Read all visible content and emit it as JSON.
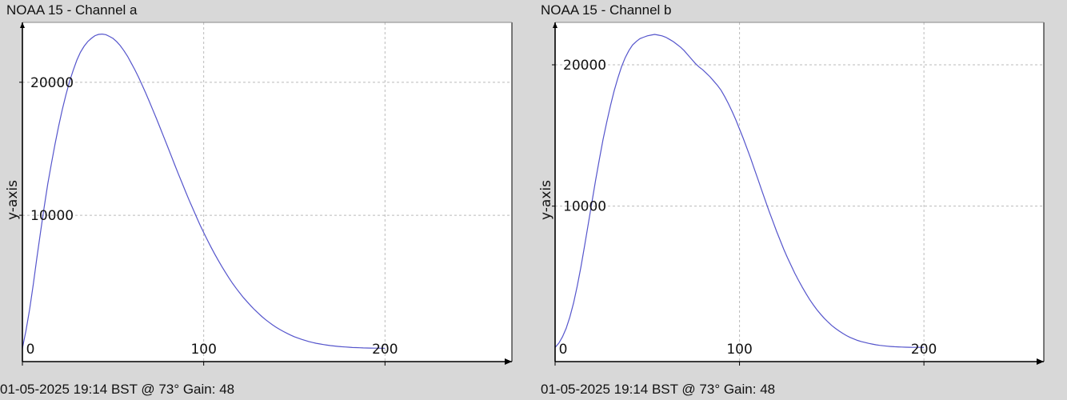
{
  "colors": {
    "background": "#d8d8d8",
    "plot_bg": "#ffffff",
    "line": "#5555cc",
    "grid": "#bbbbbb",
    "axis": "#000000"
  },
  "chart_data": [
    {
      "type": "line",
      "title": "NOAA 15 - Channel a",
      "ylabel": "y-axis",
      "xlabel": "",
      "footer": "01-05-2025 19:14 BST @ 73° Gain: 48",
      "xlim": [
        0,
        270
      ],
      "ylim": [
        -1000,
        24500
      ],
      "xticks": [
        0,
        100,
        200
      ],
      "yticks": [
        10000,
        20000
      ],
      "grid": true,
      "series": [
        {
          "x": [
            0,
            2,
            4,
            6,
            8,
            10,
            12,
            14,
            16,
            18,
            20,
            22,
            24,
            26,
            28,
            30,
            32,
            34,
            36,
            38,
            40,
            42,
            44,
            46,
            48,
            50,
            52,
            54,
            56,
            58,
            60,
            62,
            64,
            66,
            68,
            70,
            72,
            74,
            76,
            78,
            80,
            82,
            84,
            86,
            88,
            90,
            92,
            94,
            96,
            98,
            100,
            102,
            104,
            106,
            108,
            110,
            112,
            114,
            116,
            118,
            120,
            122,
            124,
            126,
            128,
            130,
            132,
            134,
            136,
            138,
            140,
            142,
            144,
            146,
            148,
            150,
            152,
            154,
            156,
            158,
            160,
            162,
            164,
            166,
            168,
            170,
            172,
            174,
            176,
            178,
            180,
            182,
            184,
            186,
            188,
            190,
            192,
            194,
            196,
            198,
            200
          ],
          "y": [
            0,
            1340,
            2950,
            4800,
            6800,
            8750,
            10600,
            12350,
            13900,
            15350,
            16700,
            17950,
            19050,
            20050,
            20900,
            21650,
            22250,
            22700,
            23050,
            23300,
            23500,
            23600,
            23620,
            23580,
            23450,
            23300,
            23050,
            22750,
            22380,
            21950,
            21450,
            20950,
            20400,
            19800,
            19200,
            18550,
            17900,
            17250,
            16560,
            15880,
            15200,
            14500,
            13800,
            13120,
            12450,
            11780,
            11130,
            10500,
            9880,
            9270,
            8700,
            8150,
            7620,
            7100,
            6620,
            6150,
            5700,
            5270,
            4870,
            4490,
            4140,
            3800,
            3490,
            3190,
            2910,
            2650,
            2400,
            2170,
            1960,
            1760,
            1580,
            1410,
            1260,
            1120,
            990,
            870,
            770,
            670,
            590,
            510,
            440,
            380,
            330,
            280,
            240,
            200,
            170,
            140,
            120,
            100,
            80,
            60,
            50,
            40,
            30,
            20,
            15,
            10,
            8,
            5,
            3
          ]
        }
      ]
    },
    {
      "type": "line",
      "title": "NOAA 15 - Channel b",
      "ylabel": "y-axis",
      "xlabel": "",
      "footer": "01-05-2025 19:14 BST @ 73° Gain: 48",
      "xlim": [
        0,
        265
      ],
      "ylim": [
        -1000,
        23000
      ],
      "xticks": [
        0,
        100,
        200
      ],
      "yticks": [
        10000,
        20000
      ],
      "grid": true,
      "series": [
        {
          "x": [
            0,
            2,
            4,
            6,
            8,
            10,
            12,
            14,
            16,
            18,
            20,
            22,
            24,
            26,
            28,
            30,
            32,
            34,
            36,
            38,
            40,
            42,
            44,
            46,
            48,
            50,
            52,
            54,
            56,
            58,
            60,
            62,
            64,
            66,
            68,
            70,
            72,
            74,
            76,
            78,
            80,
            82,
            84,
            86,
            88,
            90,
            92,
            94,
            96,
            98,
            100,
            102,
            104,
            106,
            108,
            110,
            112,
            114,
            116,
            118,
            120,
            122,
            124,
            126,
            128,
            130,
            132,
            134,
            136,
            138,
            140,
            142,
            144,
            146,
            148,
            150,
            152,
            154,
            156,
            158,
            160,
            162,
            164,
            166,
            168,
            170,
            172,
            174,
            176,
            178,
            180,
            182,
            184,
            186,
            188,
            190,
            192,
            194,
            196,
            198,
            200
          ],
          "y": [
            0,
            300,
            750,
            1350,
            2150,
            3150,
            4350,
            5700,
            7200,
            8750,
            10300,
            11850,
            13300,
            14700,
            15950,
            17100,
            18150,
            19050,
            19850,
            20500,
            21000,
            21400,
            21650,
            21850,
            21950,
            22050,
            22100,
            22150,
            22100,
            22050,
            21950,
            21800,
            21650,
            21450,
            21250,
            21000,
            20700,
            20400,
            20100,
            19850,
            19650,
            19400,
            19150,
            18850,
            18550,
            18200,
            17750,
            17250,
            16700,
            16100,
            15450,
            14800,
            14100,
            13400,
            12650,
            11900,
            11150,
            10400,
            9650,
            8950,
            8250,
            7600,
            6950,
            6350,
            5800,
            5250,
            4750,
            4270,
            3820,
            3400,
            3020,
            2670,
            2350,
            2060,
            1800,
            1560,
            1350,
            1160,
            990,
            840,
            710,
            600,
            500,
            420,
            350,
            290,
            240,
            190,
            150,
            120,
            90,
            70,
            50,
            40,
            30,
            20,
            15,
            10,
            8,
            5,
            3
          ]
        }
      ]
    }
  ]
}
